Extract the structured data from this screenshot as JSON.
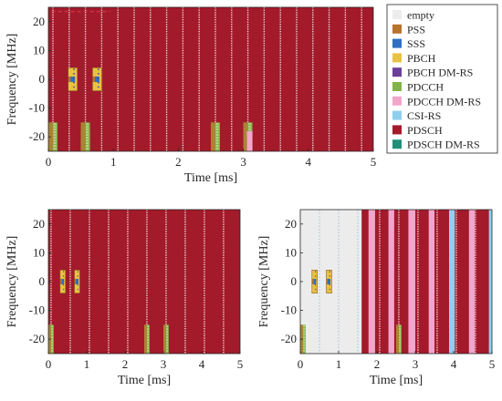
{
  "colors": {
    "empty": "#ececec",
    "PSS": "#b8732e",
    "SSS": "#2e6fc1",
    "PBCH": "#e8c243",
    "PBCH DM-RS": "#6b3f99",
    "PDCCH": "#82b34a",
    "PDCCH DM-RS": "#f2a6cc",
    "CSI-RS": "#8fd0ef",
    "PDSCH": "#a31a2b",
    "PDSCH DM-RS": "#1f8f7a",
    "axis": "#262626"
  },
  "chart_data": [
    {
      "type": "heatmap",
      "panel": "top",
      "xlabel": "Time [ms]",
      "ylabel": "Frequency [MHz]",
      "xlim": [
        0,
        5
      ],
      "ylim": [
        -25,
        25
      ],
      "xticks": [
        0,
        1,
        2,
        3,
        4,
        5
      ],
      "yticks": [
        -20,
        -10,
        0,
        10,
        20
      ],
      "background": "PDSCH",
      "dmrs_period_ms": 0.25,
      "dmrs_offset_ms": 0.07,
      "ssb_blocks": [
        {
          "t": 0.375,
          "f": 0
        },
        {
          "t": 0.75,
          "f": 0
        }
      ],
      "empty_blocks": [
        {
          "t0": 0.5,
          "t1": 0.64,
          "f0": -25,
          "f1": -18
        }
      ],
      "pdcch_blocks": [
        {
          "t": 0.0,
          "f0": -25,
          "f1": -15
        },
        {
          "t": 0.5,
          "f0": -25,
          "f1": -15
        },
        {
          "t": 2.5,
          "f0": -25,
          "f1": -15
        },
        {
          "t": 3.0,
          "f0": -25,
          "f1": -15
        }
      ],
      "pdcch_dmrs_blocks": [
        {
          "t": 3.0,
          "f0": -25,
          "f1": -18
        }
      ],
      "light_blocks": []
    },
    {
      "type": "heatmap",
      "panel": "bottom-left",
      "xlabel": "Time [ms]",
      "ylabel": "Frequency [MHz]",
      "xlim": [
        0,
        5
      ],
      "ylim": [
        -25,
        25
      ],
      "xticks": [
        0,
        1,
        2,
        3,
        4,
        5
      ],
      "yticks": [
        -20,
        -10,
        0,
        10,
        20
      ],
      "background": "PDSCH",
      "dmrs_period_ms": 0.5,
      "dmrs_offset_ms": 0.07,
      "ssb_blocks": [
        {
          "t": 0.375,
          "f": 0
        },
        {
          "t": 0.75,
          "f": 0
        }
      ],
      "empty_blocks": [
        {
          "t0": 3.0,
          "t1": 3.12,
          "f0": -25,
          "f1": -18
        }
      ],
      "pdcch_blocks": [
        {
          "t": 0.0,
          "f0": -25,
          "f1": -15
        },
        {
          "t": 2.5,
          "f0": -25,
          "f1": -15
        },
        {
          "t": 3.0,
          "f0": -25,
          "f1": -15
        }
      ],
      "pdcch_dmrs_blocks": [],
      "light_blocks": []
    },
    {
      "type": "heatmap",
      "panel": "bottom-right",
      "xlabel": "Time [ms]",
      "ylabel": "Frequency [MHz]",
      "xlim": [
        0,
        5
      ],
      "ylim": [
        -25,
        25
      ],
      "xticks": [
        0,
        1,
        2,
        3,
        4,
        5
      ],
      "yticks": [
        -20,
        -10,
        0,
        10,
        20
      ],
      "background": "empty",
      "pdsch_start_ms": 1.6,
      "dmrs_period_ms": 0.5,
      "dmrs_offset_ms": 0.07,
      "ssb_blocks": [
        {
          "t": 0.375,
          "f": 0
        },
        {
          "t": 0.75,
          "f": 0
        }
      ],
      "empty_blocks": [],
      "pdcch_blocks": [
        {
          "t": 0.0,
          "f0": -25,
          "f1": -15
        },
        {
          "t": 2.5,
          "f0": -25,
          "f1": -15
        }
      ],
      "pdcch_dmrs_blocks": [],
      "light_blocks": [
        {
          "t0": 1.78,
          "t1": 1.95,
          "kind": "PDCCH DM-RS"
        },
        {
          "t0": 2.3,
          "t1": 2.45,
          "kind": "PDCCH DM-RS"
        },
        {
          "t0": 2.82,
          "t1": 3.0,
          "kind": "PDCCH DM-RS"
        },
        {
          "t0": 3.35,
          "t1": 3.5,
          "kind": "PDCCH DM-RS"
        },
        {
          "t0": 3.88,
          "t1": 4.03,
          "kind": "CSI-RS"
        },
        {
          "t0": 4.4,
          "t1": 4.55,
          "kind": "PDCCH DM-RS"
        },
        {
          "t0": 4.92,
          "t1": 5.0,
          "kind": "CSI-RS"
        }
      ]
    }
  ],
  "legend": {
    "placement": "top-right",
    "entries": [
      "empty",
      "PSS",
      "SSS",
      "PBCH",
      "PBCH DM-RS",
      "PDCCH",
      "PDCCH DM-RS",
      "CSI-RS",
      "PDSCH",
      "PDSCH DM-RS"
    ]
  }
}
